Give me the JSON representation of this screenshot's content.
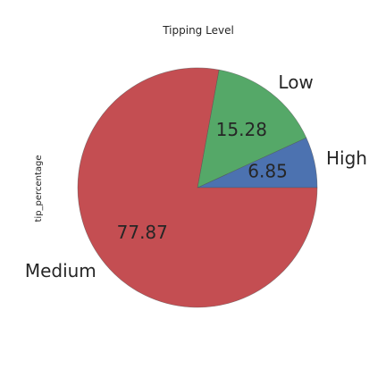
{
  "chart_data": {
    "type": "pie",
    "title": "Tipping Level",
    "ylabel": "tip_percentage",
    "autopct_format": "%.2f",
    "categories": [
      "High",
      "Low",
      "Medium"
    ],
    "values": [
      6.85,
      15.28,
      77.87
    ],
    "value_labels": [
      "6.85",
      "15.28",
      "77.87"
    ],
    "colors": [
      "#4c72b0",
      "#55a868",
      "#c44e52"
    ],
    "start_angle": 0,
    "direction": "counterclockwise"
  }
}
